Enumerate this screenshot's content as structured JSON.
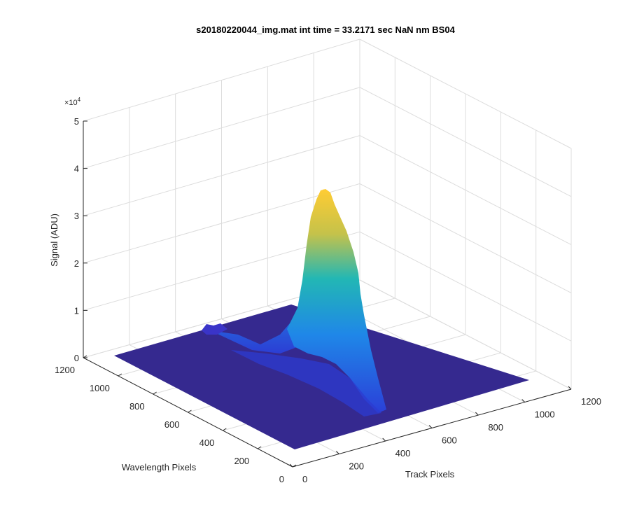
{
  "chart_data": {
    "type": "surface",
    "title": "s20180220044_img.mat int time = 33.2171 sec  NaN nm BS04",
    "xlabel": "Track Pixels",
    "ylabel": "Wavelength Pixels",
    "zlabel": "Signal (ADU)",
    "z_exponent_label": "×10",
    "z_exponent_value": "4",
    "x_ticks": [
      "0",
      "200",
      "400",
      "600",
      "800",
      "1000",
      "1200"
    ],
    "y_ticks": [
      "0",
      "200",
      "400",
      "600",
      "800",
      "1000",
      "1200"
    ],
    "z_ticks": [
      "0",
      "1",
      "2",
      "3",
      "4",
      "5"
    ],
    "xlim": [
      0,
      1200
    ],
    "ylim": [
      0,
      1200
    ],
    "zlim": [
      0,
      50000
    ],
    "grid": true,
    "colormap": "parula",
    "colors": {
      "base": "#35298f",
      "low": "#2b3fd8",
      "mid": "#22a7c8",
      "high": "#ffcc33"
    },
    "peak": {
      "track_pixel": 620,
      "wavelength_pixel": 700,
      "signal": 35000
    }
  }
}
